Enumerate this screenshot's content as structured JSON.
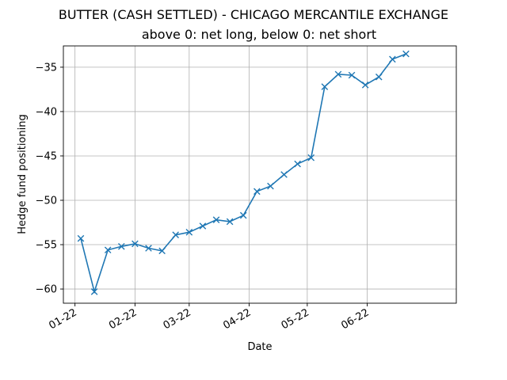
{
  "chart_data": {
    "type": "line",
    "title": "BUTTER (CASH SETTLED) - CHICAGO MERCANTILE EXCHANGE",
    "subtitle": "above 0: net long, below 0: net short",
    "xlabel": "Date",
    "ylabel": "Hedge fund positioning",
    "grid": true,
    "legend": "none",
    "line_color": "#1f77b4",
    "marker": "x",
    "x_ticks": [
      {
        "date": "2022-01-01",
        "label": "01-22"
      },
      {
        "date": "2022-02-01",
        "label": "02-22"
      },
      {
        "date": "2022-03-01",
        "label": "03-22"
      },
      {
        "date": "2022-04-01",
        "label": "04-22"
      },
      {
        "date": "2022-05-01",
        "label": "05-22"
      },
      {
        "date": "2022-06-01",
        "label": "06-22"
      }
    ],
    "xlim": [
      "2021-12-26",
      "2022-07-17"
    ],
    "y_ticks": [
      {
        "value": -60,
        "label": "−60"
      },
      {
        "value": -55,
        "label": "−55"
      },
      {
        "value": -50,
        "label": "−50"
      },
      {
        "value": -45,
        "label": "−45"
      },
      {
        "value": -40,
        "label": "−40"
      },
      {
        "value": -35,
        "label": "−35"
      }
    ],
    "ylim": [
      -61.6,
      -32.6
    ],
    "points": [
      {
        "x": "2022-01-04",
        "y": -54.3
      },
      {
        "x": "2022-01-11",
        "y": -60.3
      },
      {
        "x": "2022-01-18",
        "y": -55.6
      },
      {
        "x": "2022-01-25",
        "y": -55.2
      },
      {
        "x": "2022-02-01",
        "y": -54.9
      },
      {
        "x": "2022-02-08",
        "y": -55.4
      },
      {
        "x": "2022-02-15",
        "y": -55.7
      },
      {
        "x": "2022-02-22",
        "y": -53.9
      },
      {
        "x": "2022-03-01",
        "y": -53.6
      },
      {
        "x": "2022-03-08",
        "y": -52.9
      },
      {
        "x": "2022-03-15",
        "y": -52.2
      },
      {
        "x": "2022-03-22",
        "y": -52.4
      },
      {
        "x": "2022-03-29",
        "y": -51.7
      },
      {
        "x": "2022-04-05",
        "y": -49.0
      },
      {
        "x": "2022-04-12",
        "y": -48.4
      },
      {
        "x": "2022-04-19",
        "y": -47.1
      },
      {
        "x": "2022-04-26",
        "y": -45.9
      },
      {
        "x": "2022-05-03",
        "y": -45.2
      },
      {
        "x": "2022-05-10",
        "y": -37.2
      },
      {
        "x": "2022-05-17",
        "y": -35.8
      },
      {
        "x": "2022-05-24",
        "y": -35.9
      },
      {
        "x": "2022-05-31",
        "y": -37.0
      },
      {
        "x": "2022-06-07",
        "y": -36.1
      },
      {
        "x": "2022-06-14",
        "y": -34.1
      },
      {
        "x": "2022-06-21",
        "y": -33.5
      }
    ]
  }
}
